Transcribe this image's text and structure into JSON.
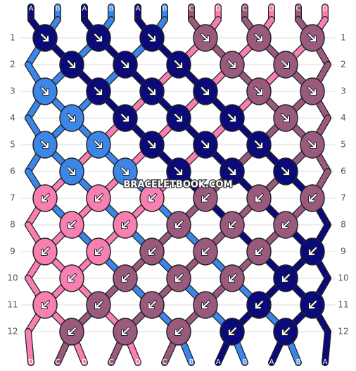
{
  "colors": {
    "A": "#0a0a7a",
    "B": "#3b86e8",
    "C": "#9a5a7e",
    "D": "#f77fb2"
  },
  "top_labels": [
    "A",
    "B",
    "A",
    "B",
    "A",
    "B",
    "C",
    "D",
    "C",
    "D",
    "C",
    "D"
  ],
  "bottom_labels": [
    "D",
    "C",
    "D",
    "C",
    "D",
    "C",
    "B",
    "A",
    "B",
    "A",
    "B",
    "A"
  ],
  "row_numbers": [
    "1",
    "2",
    "3",
    "4",
    "5",
    "6",
    "7",
    "8",
    "9",
    "10",
    "11",
    "12"
  ],
  "rows": [
    [
      "right",
      "right",
      "right",
      "right",
      "right",
      "right"
    ],
    [
      "right",
      "right",
      "right",
      "right",
      "right"
    ],
    [
      "right",
      "right",
      "right",
      "right",
      "right",
      "right"
    ],
    [
      "right",
      "right",
      "right",
      "right",
      "right"
    ],
    [
      "right",
      "right",
      "right",
      "right",
      "right",
      "right"
    ],
    [
      "right",
      "right",
      "right",
      "right",
      "right"
    ],
    [
      "left",
      "left",
      "left",
      "left",
      "left",
      "left"
    ],
    [
      "left",
      "left",
      "left",
      "left",
      "left"
    ],
    [
      "left",
      "left",
      "left",
      "left",
      "left",
      "left"
    ],
    [
      "left",
      "left",
      "left",
      "left",
      "left"
    ],
    [
      "left",
      "left",
      "left",
      "left",
      "left",
      "left"
    ],
    [
      "left",
      "left",
      "left",
      "left",
      "left"
    ]
  ],
  "watermark": "BRACELETBOOK.COM"
}
